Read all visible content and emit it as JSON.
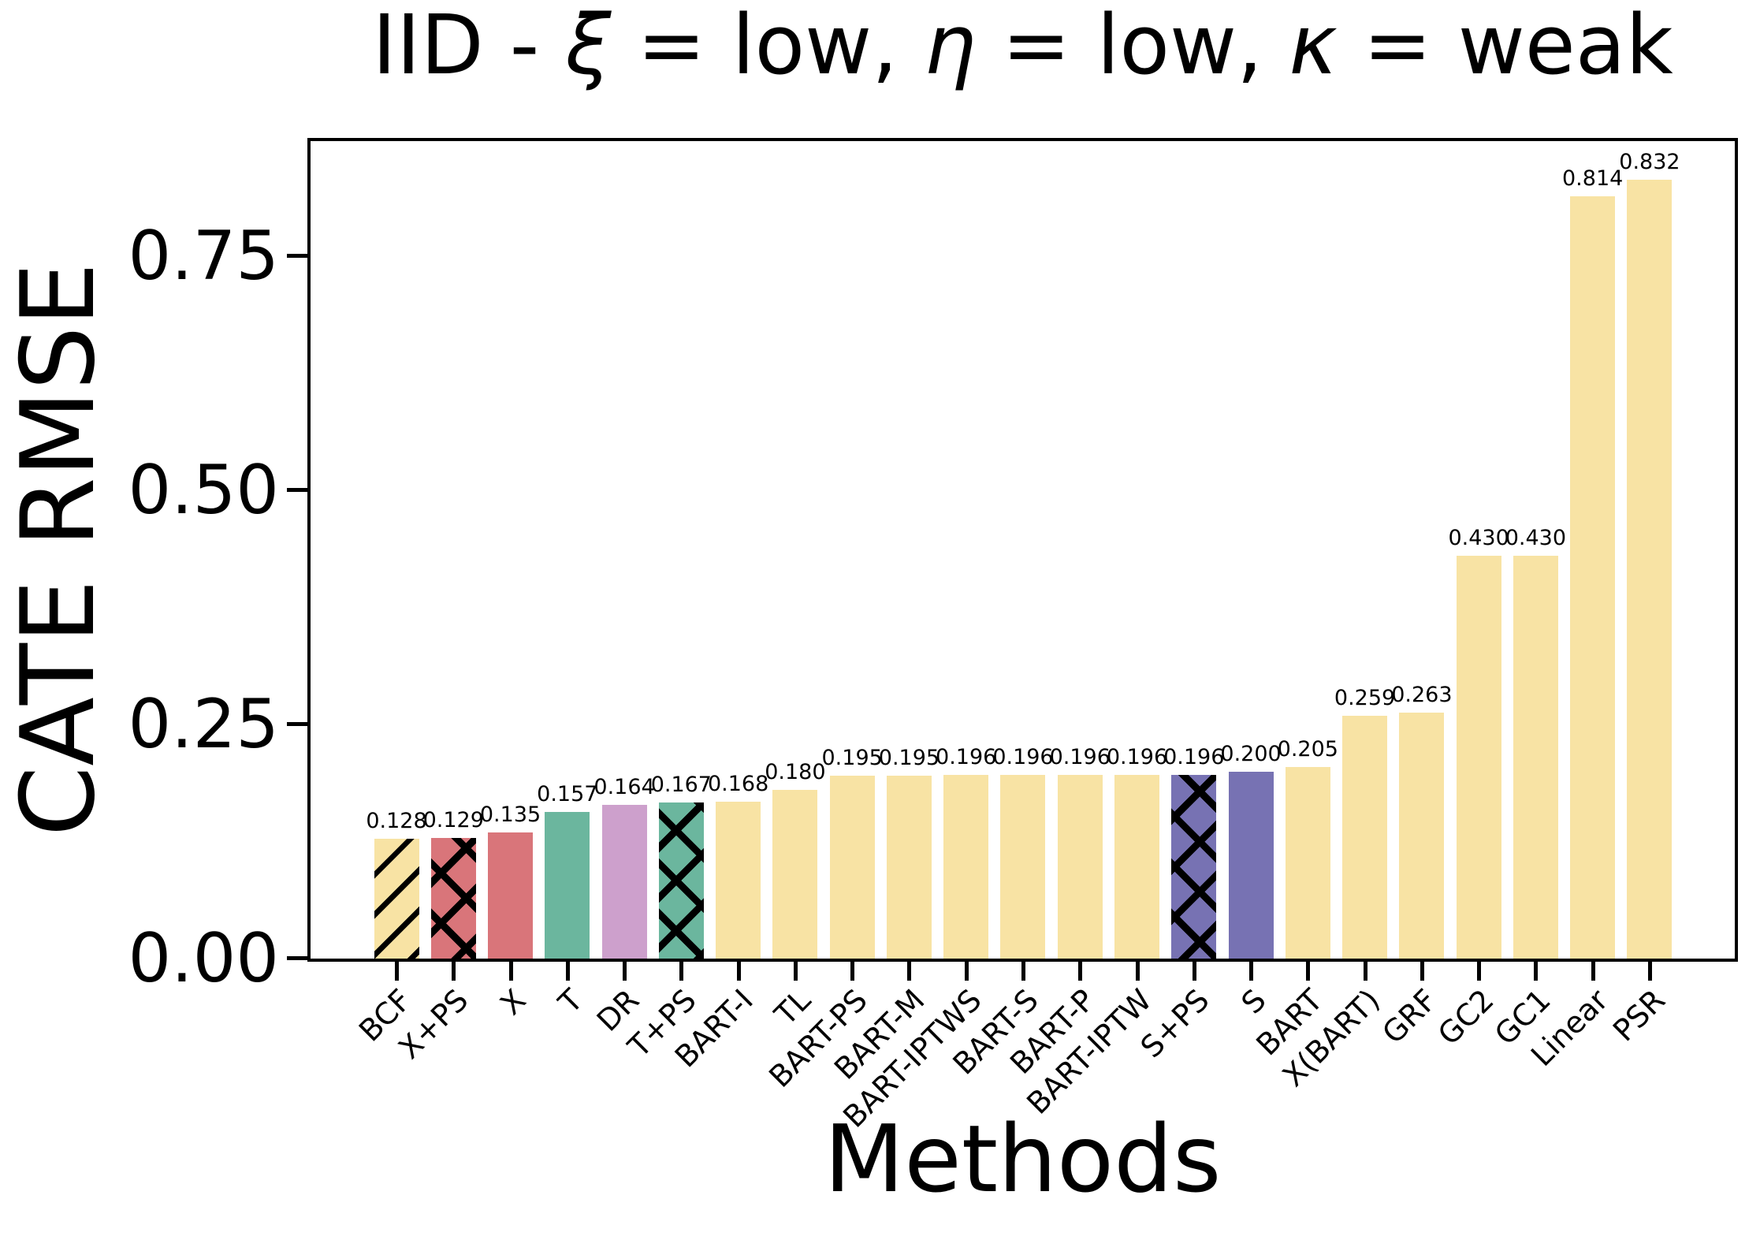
{
  "chart_data": {
    "type": "bar",
    "title": "IID - ξ = low, η = low, κ = weak",
    "title_segments": [
      {
        "text": "IID - ",
        "italic": false
      },
      {
        "text": "ξ",
        "italic": true
      },
      {
        "text": " = low, ",
        "italic": false
      },
      {
        "text": "η",
        "italic": true
      },
      {
        "text": " = low, ",
        "italic": false
      },
      {
        "text": "κ",
        "italic": true
      },
      {
        "text": " = weak",
        "italic": false
      }
    ],
    "xlabel": "Methods",
    "ylabel": "CATE RMSE",
    "ylim": [
      0,
      0.8733
    ],
    "yticks": [
      0,
      0.25,
      0.5,
      0.75
    ],
    "ytick_labels": [
      "0.00",
      "0.25",
      "0.50",
      "0.75"
    ],
    "grid": false,
    "legend": null,
    "bar_value_labels_shown": true,
    "categories": [
      "BCF",
      "X+PS",
      "X",
      "T",
      "DR",
      "T+PS",
      "BART-I",
      "TL",
      "BART-PS",
      "BART-M",
      "BART-IPTWS",
      "BART-S",
      "BART-P",
      "BART-IPTW",
      "S+PS",
      "S",
      "BART",
      "X(BART)",
      "GRF",
      "GC2",
      "GC1",
      "Linear",
      "PSR"
    ],
    "values": [
      0.128,
      0.129,
      0.135,
      0.157,
      0.164,
      0.167,
      0.168,
      0.18,
      0.195,
      0.195,
      0.196,
      0.196,
      0.196,
      0.196,
      0.196,
      0.2,
      0.205,
      0.259,
      0.263,
      0.43,
      0.43,
      0.814,
      0.832
    ],
    "value_labels": [
      "0.128",
      "0.129",
      "0.135",
      "0.157",
      "0.164",
      "0.167",
      "0.168",
      "0.180",
      "0.195",
      "0.195",
      "0.196",
      "0.196",
      "0.196",
      "0.196",
      "0.196",
      "0.200",
      "0.205",
      "0.259",
      "0.263",
      "0.430",
      "0.430",
      "0.814",
      "0.832"
    ],
    "bar_styles": [
      {
        "color": "#F8E3A4",
        "hatch": "diag"
      },
      {
        "color": "#D9757A",
        "hatch": "cross"
      },
      {
        "color": "#D9757A",
        "hatch": "none"
      },
      {
        "color": "#6BB69E",
        "hatch": "none"
      },
      {
        "color": "#CDA0CC",
        "hatch": "none"
      },
      {
        "color": "#6BB69E",
        "hatch": "cross"
      },
      {
        "color": "#F8E3A4",
        "hatch": "none"
      },
      {
        "color": "#F8E3A4",
        "hatch": "none"
      },
      {
        "color": "#F8E3A4",
        "hatch": "none"
      },
      {
        "color": "#F8E3A4",
        "hatch": "none"
      },
      {
        "color": "#F8E3A4",
        "hatch": "none"
      },
      {
        "color": "#F8E3A4",
        "hatch": "none"
      },
      {
        "color": "#F8E3A4",
        "hatch": "none"
      },
      {
        "color": "#F8E3A4",
        "hatch": "none"
      },
      {
        "color": "#7772B3",
        "hatch": "cross"
      },
      {
        "color": "#7772B3",
        "hatch": "none"
      },
      {
        "color": "#F8E3A4",
        "hatch": "none"
      },
      {
        "color": "#F8E3A4",
        "hatch": "none"
      },
      {
        "color": "#F8E3A4",
        "hatch": "none"
      },
      {
        "color": "#F8E3A4",
        "hatch": "none"
      },
      {
        "color": "#F8E3A4",
        "hatch": "none"
      },
      {
        "color": "#F8E3A4",
        "hatch": "none"
      },
      {
        "color": "#F8E3A4",
        "hatch": "none"
      }
    ],
    "colors": {
      "bar_yellow": "#F8E3A4",
      "bar_red": "#D9757A",
      "bar_green": "#6BB69E",
      "bar_plum": "#CDA0CC",
      "bar_purple": "#7772B3",
      "hatch": "#000000",
      "axis": "#000000",
      "background": "#FFFFFF"
    }
  }
}
